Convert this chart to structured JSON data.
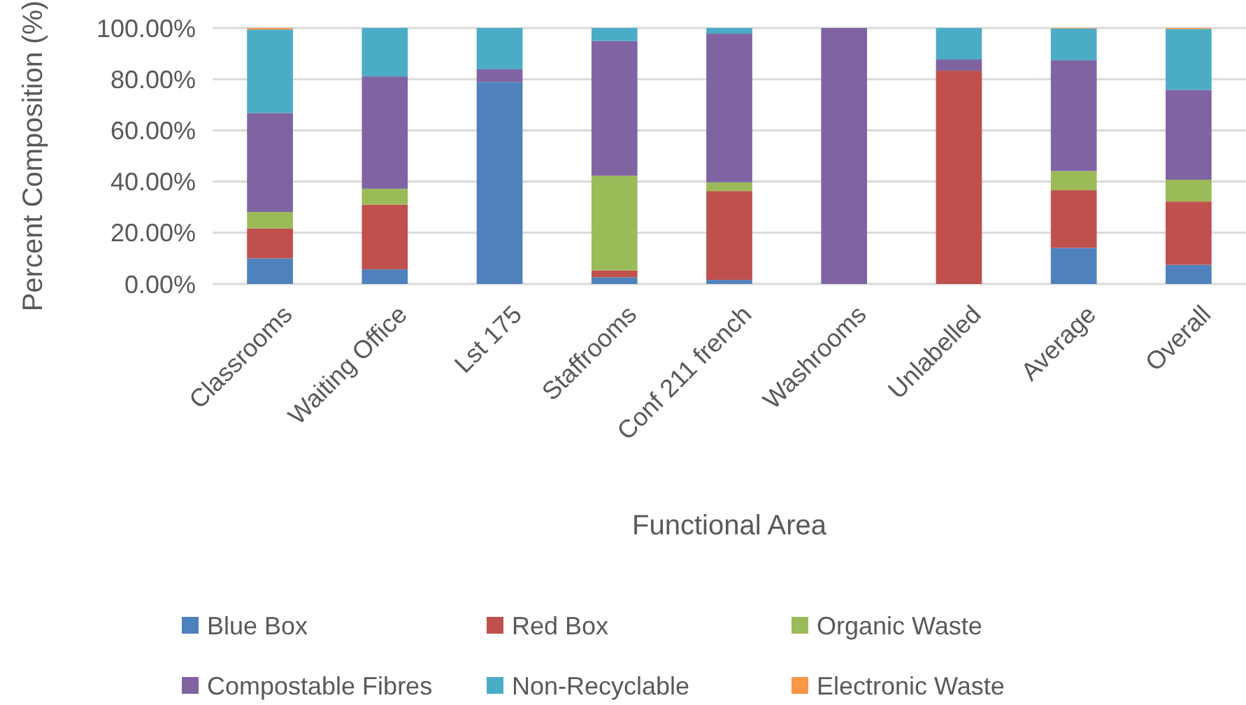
{
  "chart_data": {
    "type": "bar",
    "stacked": true,
    "xlabel": "Functional Area",
    "ylabel": "Percent Composition (%)",
    "categories": [
      "Classrooms",
      "Waiting Office",
      "Lst 175",
      "Staffrooms",
      "Conf 211 french",
      "Washrooms",
      "Unlabelled",
      "Average",
      "Overall"
    ],
    "series": [
      {
        "name": "Blue Box",
        "color": "#4f81bd",
        "values": [
          10,
          5.7,
          78.9,
          2.6,
          1.6,
          0,
          0,
          14.1,
          7.5
        ]
      },
      {
        "name": "Red Box",
        "color": "#c0504d",
        "values": [
          11.7,
          25.3,
          0,
          2.7,
          34.7,
          0,
          83.3,
          22.5,
          24.7
        ]
      },
      {
        "name": "Organic Waste",
        "color": "#9bbb59",
        "values": [
          6.4,
          6.2,
          0,
          37,
          3.4,
          0,
          0,
          7.5,
          8.5
        ]
      },
      {
        "name": "Compostable Fibres",
        "color": "#8064a2",
        "values": [
          38.7,
          43.9,
          5,
          52.6,
          58.1,
          100,
          4.4,
          43.3,
          35.1
        ]
      },
      {
        "name": "Non-Recyclable",
        "color": "#4bacc6",
        "values": [
          32.6,
          18.9,
          16.1,
          5.1,
          2.2,
          0,
          12.3,
          12.4,
          23.8
        ]
      },
      {
        "name": "Electronic Waste",
        "color": "#f79646",
        "values": [
          0.6,
          0,
          0,
          0,
          0,
          0,
          0,
          0.2,
          0.4
        ]
      }
    ],
    "ylim": [
      0,
      100
    ],
    "yticks": [
      {
        "value": 0,
        "label": "0.00%"
      },
      {
        "value": 20,
        "label": "20.00%"
      },
      {
        "value": 40,
        "label": "40.00%"
      },
      {
        "value": 60,
        "label": "60.00%"
      },
      {
        "value": 80,
        "label": "80.00%"
      },
      {
        "value": 100,
        "label": "100.00%"
      }
    ],
    "grid": "y",
    "legend": "bottom"
  }
}
